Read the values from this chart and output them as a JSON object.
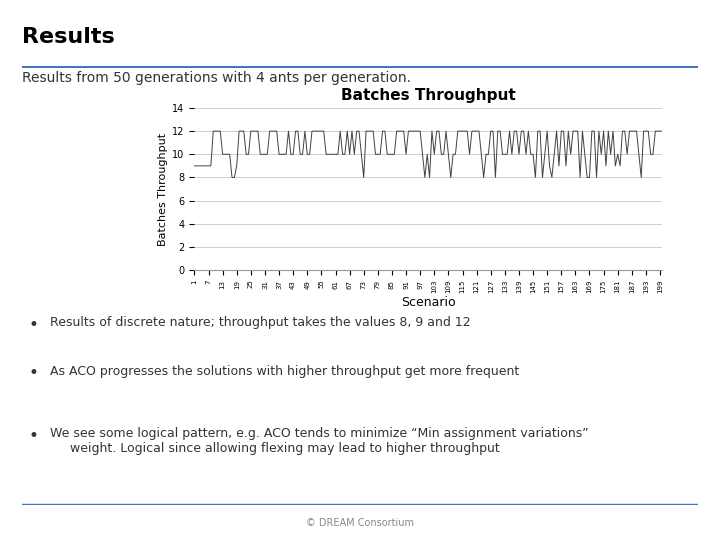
{
  "title": "Results",
  "subtitle": "Results from 50 generations with 4 ants per generation.",
  "chart_title": "Batches Throughput",
  "ylabel": "Batches Throughput",
  "xlabel": "Scenario",
  "ylim": [
    0,
    14
  ],
  "yticks": [
    0,
    2,
    4,
    6,
    8,
    10,
    12,
    14
  ],
  "bullet_points": [
    "Results of discrete nature; throughput takes the values 8, 9 and 12",
    "As ACO progresses the solutions with higher throughput get more frequent",
    "We see some logical pattern, e.g. ACO tends to minimize “Min assignment variations”\n     weight. Logical since allowing flexing may lead to higher throughput"
  ],
  "background_color": "#ffffff",
  "line_color": "#404040",
  "header_line_color": "#4472c4",
  "footer_line_color": "#4472c4",
  "title_color": "#000000",
  "text_color": "#333333"
}
